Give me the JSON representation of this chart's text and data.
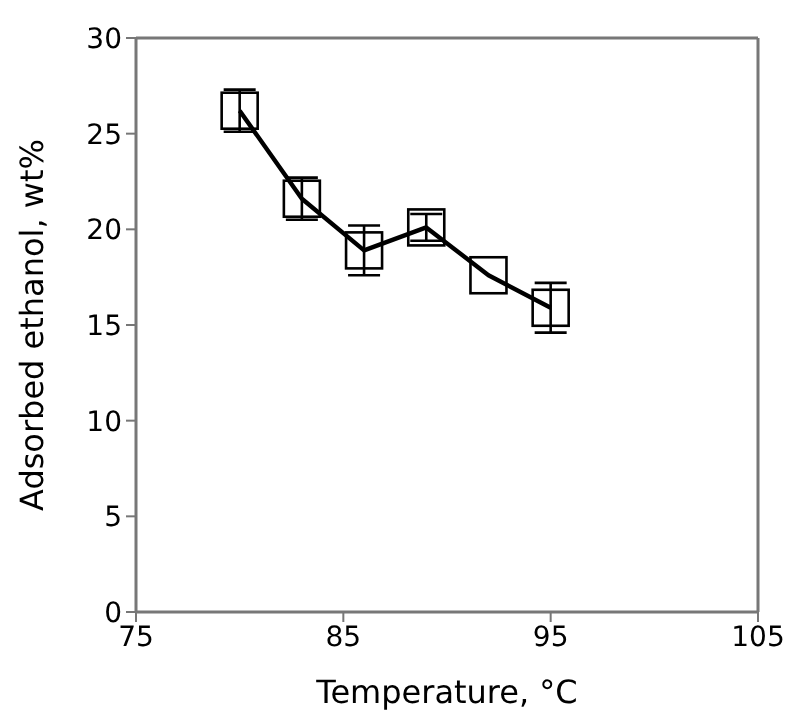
{
  "chart_data": {
    "type": "line",
    "xlabel": "Temperature, °C",
    "ylabel": "Adsorbed ethanol, wt%",
    "x": [
      80,
      83,
      86,
      89,
      92,
      95
    ],
    "series": [
      {
        "color": "#000000",
        "values": [
          26.2,
          21.6,
          18.9,
          20.1,
          17.6,
          15.9
        ],
        "errors": [
          1.1,
          1.1,
          1.3,
          0.7,
          null,
          1.3
        ]
      }
    ],
    "xlim": [
      75,
      105
    ],
    "xticks": [
      75,
      85,
      95,
      105
    ],
    "ylim": [
      0,
      30
    ],
    "yticks": [
      0,
      5,
      10,
      15,
      20,
      25,
      30
    ],
    "marker": "square",
    "line_style": "solid",
    "grid": false,
    "legend": false
  }
}
